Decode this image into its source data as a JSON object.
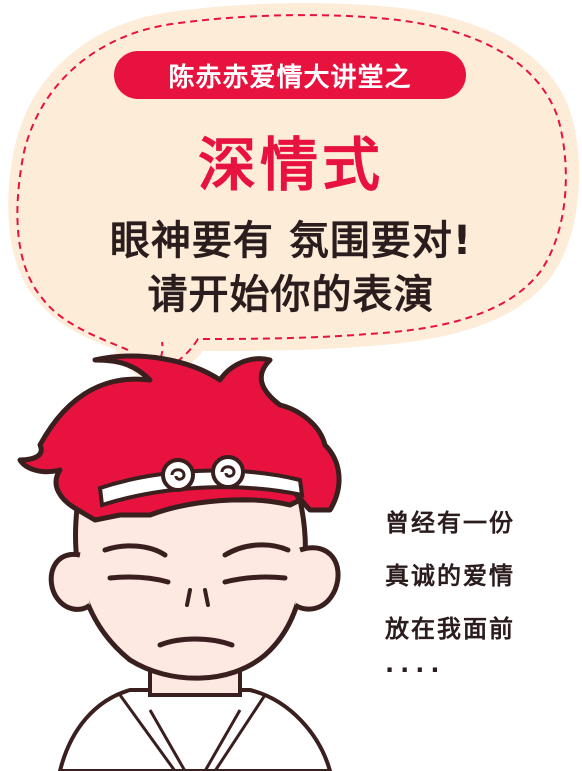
{
  "badge": {
    "text": "陈赤赤爱情大讲堂之"
  },
  "title": {
    "text": "深情式"
  },
  "subtitle": {
    "line1": "眼神要有 氛围要对!",
    "line2": "请开始你的表演"
  },
  "side_lines": [
    "曾经有一份",
    "真诚的爱情",
    "放在我面前",
    "····"
  ],
  "colors": {
    "accent": "#e8123e",
    "bubble_fill": "#fcecd8",
    "outline": "#3a1f1f",
    "skin": "#fde9e2",
    "text_dark": "#2b1d1d"
  },
  "icons": {
    "speech_bubble": "speech-bubble",
    "character": "monkey-king-cartoon"
  }
}
